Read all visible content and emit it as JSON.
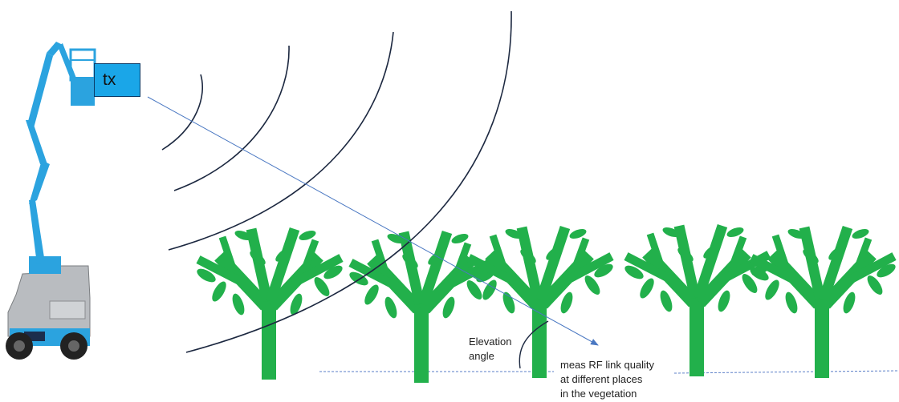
{
  "transmitter": {
    "label": "tx"
  },
  "elevation_label": {
    "line1": "Elevation",
    "line2": "angle"
  },
  "measurement_note": {
    "line1": "meas RF link quality",
    "line2": "at different places",
    "line3": "in the vegetation"
  },
  "colors": {
    "lift_body": "#2ba3df",
    "lift_base": "#b9bcc0",
    "tx_box": "#1aa6e8",
    "tree": "#22b04b",
    "wavefront": "#1c2840",
    "ray": "#4a78c2",
    "ground": "#5b7fc7"
  },
  "icons": {
    "lift": "boom-lift-icon",
    "tree": "tree-icon",
    "wavefront": "wavefront-arc",
    "ray": "signal-ray-arrow"
  }
}
